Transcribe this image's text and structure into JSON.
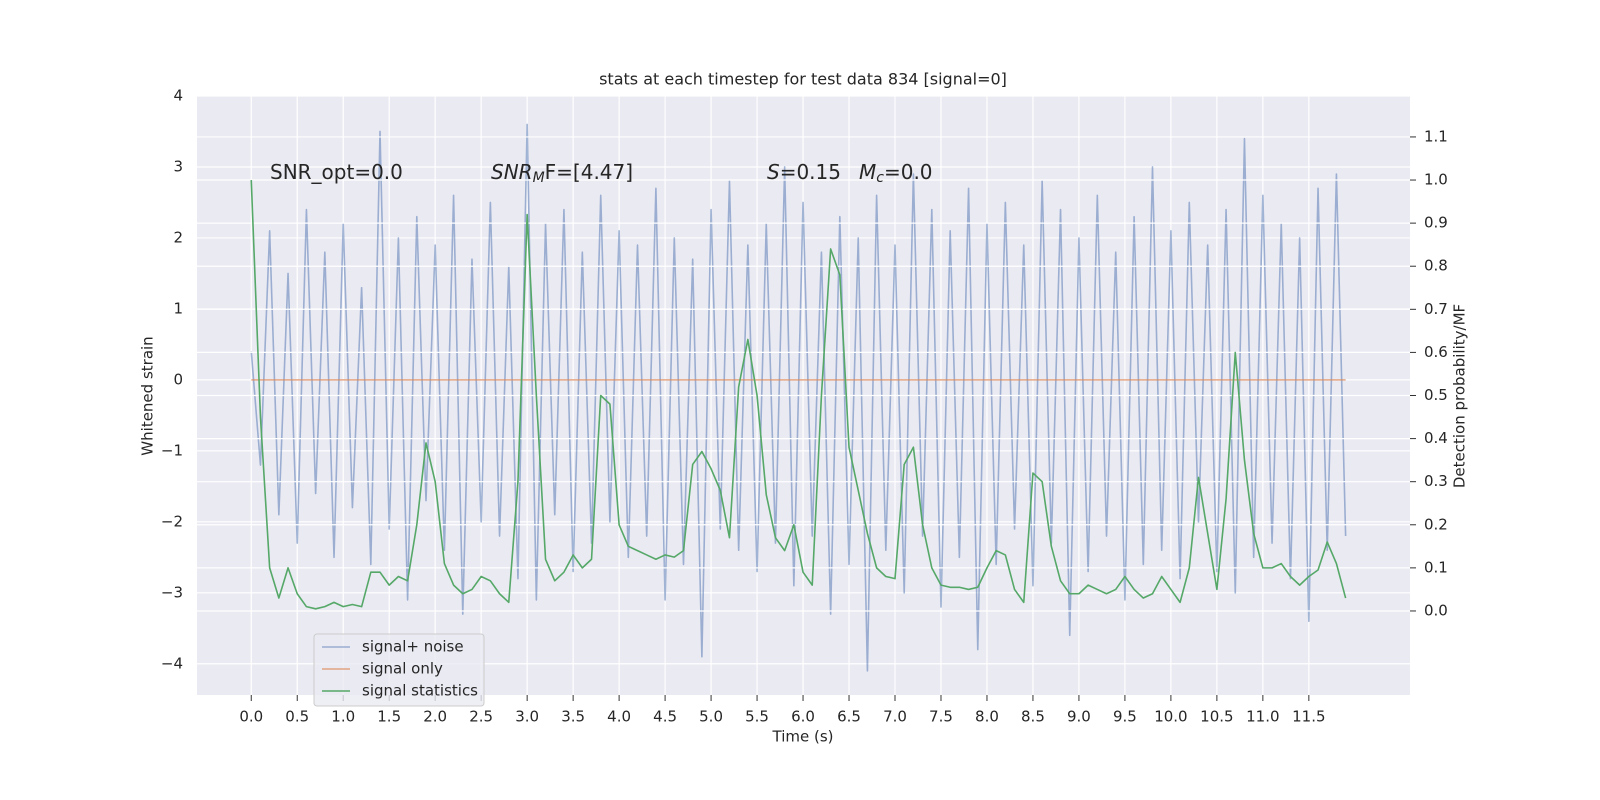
{
  "chart_data": {
    "type": "line",
    "title": "stats at each timestep for test data 834 [signal=0]",
    "xlabel": "Time (s)",
    "ylabel": "Whitened strain",
    "y2label": "Detection probability/MF",
    "annotations": [
      [
        "SNR_opt=0.0"
      ],
      [
        "SNR",
        "M",
        "F=[4.47]"
      ],
      [
        "S",
        "=0.15"
      ],
      [
        "M",
        "c",
        "=0.0"
      ]
    ],
    "x": [
      0.0,
      0.1,
      0.2,
      0.3,
      0.4,
      0.5,
      0.6,
      0.7,
      0.8,
      0.9,
      1.0,
      1.1,
      1.2,
      1.3,
      1.4,
      1.5,
      1.6,
      1.7,
      1.8,
      1.9,
      2.0,
      2.1,
      2.2,
      2.3,
      2.4,
      2.5,
      2.6,
      2.7,
      2.8,
      2.9,
      3.0,
      3.1,
      3.2,
      3.3,
      3.4,
      3.5,
      3.6,
      3.7,
      3.8,
      3.9,
      4.0,
      4.1,
      4.2,
      4.3,
      4.4,
      4.5,
      4.6,
      4.7,
      4.8,
      4.9,
      5.0,
      5.1,
      5.2,
      5.3,
      5.4,
      5.5,
      5.6,
      5.7,
      5.8,
      5.9,
      6.0,
      6.1,
      6.2,
      6.3,
      6.4,
      6.5,
      6.6,
      6.7,
      6.8,
      6.9,
      7.0,
      7.1,
      7.2,
      7.3,
      7.4,
      7.5,
      7.6,
      7.7,
      7.8,
      7.9,
      8.0,
      8.1,
      8.2,
      8.3,
      8.4,
      8.5,
      8.6,
      8.7,
      8.8,
      8.9,
      9.0,
      9.1,
      9.2,
      9.3,
      9.4,
      9.5,
      9.6,
      9.7,
      9.8,
      9.9,
      10.0,
      10.1,
      10.2,
      10.3,
      10.4,
      10.5,
      10.6,
      10.7,
      10.8,
      10.9,
      11.0,
      11.1,
      11.2,
      11.3,
      11.4,
      11.5,
      11.6,
      11.7,
      11.8,
      11.9
    ],
    "series": [
      {
        "name": "signal+ noise",
        "color": "#4c72b0",
        "opacity": 0.5,
        "axis": "y",
        "values": [
          0.4,
          -1.2,
          2.1,
          -1.9,
          1.5,
          -2.3,
          2.4,
          -1.6,
          1.8,
          -2.5,
          2.2,
          -1.8,
          1.3,
          -2.6,
          3.5,
          -2.1,
          2.0,
          -3.1,
          2.3,
          -1.7,
          1.9,
          -2.4,
          2.6,
          -3.3,
          1.7,
          -2.0,
          2.5,
          -2.2,
          1.6,
          -2.8,
          3.6,
          -3.1,
          2.2,
          -1.9,
          2.4,
          -2.7,
          1.8,
          -2.3,
          2.6,
          -2.0,
          2.1,
          -2.5,
          1.9,
          -2.2,
          2.7,
          -3.1,
          2.0,
          -2.6,
          1.7,
          -3.9,
          2.4,
          -2.1,
          2.8,
          -2.4,
          1.9,
          -2.7,
          2.2,
          -2.3,
          3.0,
          -2.9,
          2.5,
          -2.2,
          1.8,
          -3.3,
          2.3,
          -2.6,
          2.0,
          -4.1,
          2.6,
          -2.4,
          1.9,
          -3.0,
          2.9,
          -2.2,
          2.4,
          -3.2,
          2.1,
          -2.5,
          2.7,
          -3.8,
          2.2,
          -2.6,
          2.5,
          -2.1,
          1.9,
          -2.9,
          2.8,
          -2.3,
          2.4,
          -3.6,
          2.0,
          -2.7,
          2.6,
          -2.2,
          1.8,
          -3.1,
          2.3,
          -2.6,
          3.0,
          -2.4,
          2.1,
          -2.8,
          2.5,
          -2.0,
          1.9,
          -2.7,
          2.4,
          -3.0,
          3.4,
          -2.5,
          2.6,
          -2.3,
          2.2,
          -2.8,
          2.0,
          -3.4,
          2.7,
          -2.4,
          2.9,
          -2.2
        ]
      },
      {
        "name": "signal only",
        "color": "#dd8452",
        "opacity": 0.7,
        "axis": "y",
        "values": [
          0,
          0,
          0,
          0,
          0,
          0,
          0,
          0,
          0,
          0,
          0,
          0,
          0,
          0,
          0,
          0,
          0,
          0,
          0,
          0,
          0,
          0,
          0,
          0,
          0,
          0,
          0,
          0,
          0,
          0,
          0,
          0,
          0,
          0,
          0,
          0,
          0,
          0,
          0,
          0,
          0,
          0,
          0,
          0,
          0,
          0,
          0,
          0,
          0,
          0,
          0,
          0,
          0,
          0,
          0,
          0,
          0,
          0,
          0,
          0,
          0,
          0,
          0,
          0,
          0,
          0,
          0,
          0,
          0,
          0,
          0,
          0,
          0,
          0,
          0,
          0,
          0,
          0,
          0,
          0,
          0,
          0,
          0,
          0,
          0,
          0,
          0,
          0,
          0,
          0,
          0,
          0,
          0,
          0,
          0,
          0,
          0,
          0,
          0,
          0,
          0,
          0,
          0,
          0,
          0,
          0,
          0,
          0,
          0,
          0,
          0,
          0,
          0,
          0,
          0,
          0,
          0,
          0,
          0,
          0
        ]
      },
      {
        "name": "signal statistics",
        "color": "#55a868",
        "opacity": 1,
        "axis": "y2",
        "values": [
          1.0,
          0.45,
          0.1,
          0.03,
          0.1,
          0.04,
          0.01,
          0.005,
          0.01,
          0.02,
          0.01,
          0.015,
          0.01,
          0.09,
          0.09,
          0.06,
          0.08,
          0.07,
          0.2,
          0.39,
          0.3,
          0.11,
          0.06,
          0.04,
          0.05,
          0.08,
          0.07,
          0.04,
          0.02,
          0.3,
          0.92,
          0.5,
          0.12,
          0.07,
          0.09,
          0.13,
          0.1,
          0.12,
          0.5,
          0.48,
          0.2,
          0.15,
          0.14,
          0.13,
          0.12,
          0.13,
          0.125,
          0.14,
          0.34,
          0.37,
          0.33,
          0.28,
          0.17,
          0.52,
          0.63,
          0.5,
          0.27,
          0.17,
          0.14,
          0.2,
          0.09,
          0.06,
          0.5,
          0.84,
          0.78,
          0.38,
          0.28,
          0.18,
          0.1,
          0.08,
          0.075,
          0.34,
          0.38,
          0.2,
          0.1,
          0.06,
          0.055,
          0.055,
          0.05,
          0.055,
          0.1,
          0.14,
          0.13,
          0.05,
          0.02,
          0.32,
          0.3,
          0.15,
          0.07,
          0.04,
          0.04,
          0.06,
          0.05,
          0.04,
          0.05,
          0.08,
          0.05,
          0.03,
          0.04,
          0.08,
          0.05,
          0.02,
          0.1,
          0.31,
          0.18,
          0.05,
          0.26,
          0.6,
          0.35,
          0.18,
          0.1,
          0.1,
          0.11,
          0.08,
          0.06,
          0.08,
          0.095,
          0.16,
          0.11,
          0.03
        ]
      }
    ],
    "xlim": [
      -0.59,
      12.6
    ],
    "ylim": [
      -4.44,
      4.0
    ],
    "y2lim": [
      -0.195,
      1.195
    ],
    "xticks": [
      {
        "value": 0,
        "label": "0.0"
      },
      0.5,
      {
        "value": 1,
        "label": "1.0"
      },
      1.5,
      {
        "value": 2,
        "label": "2.0"
      },
      2.5,
      {
        "value": 3,
        "label": "3.0"
      },
      3.5,
      {
        "value": 4,
        "label": "4.0"
      },
      4.5,
      {
        "value": 5,
        "label": "5.0"
      },
      5.5,
      {
        "value": 6,
        "label": "6.0"
      },
      6.5,
      {
        "value": 7,
        "label": "7.0"
      },
      7.5,
      {
        "value": 8,
        "label": "8.0"
      },
      8.5,
      {
        "value": 9,
        "label": "9.0"
      },
      9.5,
      {
        "value": 10,
        "label": "10.0"
      },
      10.5,
      {
        "value": 11,
        "label": "11.0"
      },
      11.5
    ],
    "yticks": [
      {
        "value": -4,
        "label": "−4"
      },
      {
        "value": -3,
        "label": "−3"
      },
      {
        "value": -2,
        "label": "−2"
      },
      {
        "value": -1,
        "label": "−1"
      },
      0,
      1,
      2,
      3,
      4
    ],
    "y2ticks": [
      {
        "value": 0,
        "label": "0.0"
      },
      0.1,
      0.2,
      0.3,
      0.4,
      0.5,
      0.6,
      0.7,
      0.8,
      0.9,
      {
        "value": 1,
        "label": "1.0"
      },
      1.1
    ],
    "grid": true,
    "legend": "lower left",
    "background": "#eaeaf2"
  }
}
